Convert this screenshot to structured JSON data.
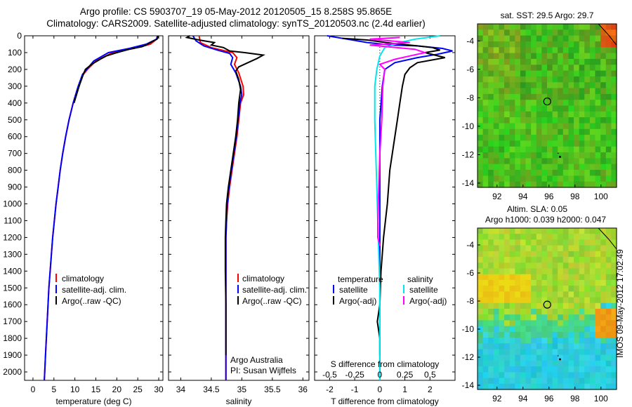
{
  "header": {
    "line1": "Argo profile: CS 5903707_19 05-May-2012 20120505_15 8.258S 95.865E",
    "line2": "Climatology: CARS2009. Satellite-adjusted climatology: synTS_20120503.nc (2.4d earlier)"
  },
  "colors": {
    "climatology": "#ff0000",
    "satellite": "#0000ff",
    "argo": "#000000",
    "t_satellite": "#0000ff",
    "s_satellite": "#00e5ee",
    "s_argo": "#ff00ff"
  },
  "chart_data": [
    {
      "id": "temperature",
      "type": "line",
      "xlabel": "temperature (deg C)",
      "ylabel": "",
      "xlim": [
        -2,
        31
      ],
      "ylim": [
        2050,
        0
      ],
      "xticks": [
        0,
        5,
        10,
        15,
        20,
        25,
        30
      ],
      "yticks": [
        0,
        100,
        200,
        300,
        400,
        500,
        600,
        700,
        800,
        900,
        1000,
        1100,
        1200,
        1300,
        1400,
        1500,
        1600,
        1700,
        1800,
        1900,
        2000
      ],
      "legend": [
        "climatology",
        "satellite-adj. clim.",
        "Argo(..raw -QC)"
      ],
      "series": [
        {
          "name": "climatology",
          "color": "#ff0000",
          "points": [
            [
              29.7,
              0
            ],
            [
              29.5,
              20
            ],
            [
              28,
              50
            ],
            [
              24,
              75
            ],
            [
              19,
              100
            ],
            [
              15,
              150
            ],
            [
              13,
              200
            ],
            [
              12,
              230
            ],
            [
              10.8,
              300
            ],
            [
              9.6,
              400
            ],
            [
              8.6,
              500
            ],
            [
              7.8,
              600
            ],
            [
              7.1,
              700
            ],
            [
              6.5,
              800
            ],
            [
              6,
              900
            ],
            [
              5.5,
              1000
            ],
            [
              5.1,
              1100
            ],
            [
              4.7,
              1200
            ],
            [
              4.4,
              1300
            ],
            [
              4.1,
              1400
            ],
            [
              3.8,
              1500
            ],
            [
              3.6,
              1600
            ],
            [
              3.4,
              1700
            ],
            [
              3.2,
              1800
            ],
            [
              3,
              1900
            ],
            [
              2.8,
              2000
            ],
            [
              2.7,
              2050
            ]
          ]
        },
        {
          "name": "satellite-adj. clim.",
          "color": "#0000ff",
          "points": [
            [
              29.7,
              0
            ],
            [
              29.5,
              20
            ],
            [
              27,
              50
            ],
            [
              23,
              75
            ],
            [
              18,
              100
            ],
            [
              14.5,
              150
            ],
            [
              12.8,
              200
            ],
            [
              11.8,
              230
            ],
            [
              10.8,
              300
            ],
            [
              9.6,
              400
            ],
            [
              8.6,
              500
            ],
            [
              7.8,
              600
            ],
            [
              7.1,
              700
            ],
            [
              6.5,
              800
            ],
            [
              6,
              900
            ],
            [
              5.5,
              1000
            ],
            [
              5.1,
              1100
            ],
            [
              4.7,
              1200
            ],
            [
              4.4,
              1300
            ],
            [
              4.1,
              1400
            ],
            [
              3.8,
              1500
            ],
            [
              3.6,
              1600
            ],
            [
              3.4,
              1700
            ],
            [
              3.2,
              1800
            ],
            [
              3,
              1900
            ],
            [
              2.8,
              2000
            ],
            [
              2.7,
              2050
            ]
          ]
        },
        {
          "name": "Argo(..raw -QC)",
          "color": "#000000",
          "points": [
            [
              29.9,
              0
            ],
            [
              29.8,
              10
            ],
            [
              29.6,
              20
            ],
            [
              28,
              40
            ],
            [
              27,
              55
            ],
            [
              26,
              65
            ],
            [
              23,
              80
            ],
            [
              20,
              100
            ],
            [
              17.5,
              120
            ],
            [
              16,
              140
            ],
            [
              14,
              170
            ],
            [
              12.5,
              200
            ],
            [
              12,
              230
            ],
            [
              11,
              300
            ],
            [
              9.8,
              400
            ]
          ]
        }
      ]
    },
    {
      "id": "salinity",
      "type": "line",
      "xlabel": "salinity",
      "ylabel": "",
      "xlim": [
        33.8,
        36.1
      ],
      "ylim": [
        2050,
        0
      ],
      "xticks": [
        34,
        34.5,
        35,
        35.5,
        36
      ],
      "legend": [
        "climatology",
        "satellite-adj. clim.",
        "Argo(..raw -QC)"
      ],
      "annotation": [
        "Argo Australia",
        "PI: Susan Wijffels"
      ],
      "series": [
        {
          "name": "climatology",
          "color": "#ff0000",
          "points": [
            [
              34.3,
              0
            ],
            [
              34.32,
              40
            ],
            [
              34.5,
              70
            ],
            [
              34.85,
              100
            ],
            [
              34.92,
              130
            ],
            [
              34.88,
              170
            ],
            [
              34.95,
              220
            ],
            [
              35.02,
              300
            ],
            [
              35.03,
              350
            ],
            [
              34.98,
              400
            ],
            [
              34.95,
              500
            ],
            [
              34.92,
              600
            ],
            [
              34.88,
              700
            ],
            [
              34.84,
              800
            ],
            [
              34.8,
              900
            ],
            [
              34.77,
              1000
            ],
            [
              34.75,
              1100
            ],
            [
              34.74,
              1200
            ],
            [
              34.74,
              1400
            ],
            [
              34.74,
              1600
            ],
            [
              34.74,
              1800
            ],
            [
              34.74,
              2000
            ],
            [
              34.74,
              2050
            ]
          ]
        },
        {
          "name": "satellite-adj. clim.",
          "color": "#0000ff",
          "points": [
            [
              34.2,
              0
            ],
            [
              34.25,
              30
            ],
            [
              34.38,
              60
            ],
            [
              34.6,
              85
            ],
            [
              34.8,
              105
            ],
            [
              34.85,
              130
            ],
            [
              34.82,
              170
            ],
            [
              34.9,
              220
            ],
            [
              34.98,
              300
            ],
            [
              35,
              350
            ],
            [
              34.97,
              400
            ],
            [
              34.94,
              500
            ],
            [
              34.91,
              600
            ],
            [
              34.87,
              700
            ],
            [
              34.83,
              800
            ],
            [
              34.79,
              900
            ],
            [
              34.76,
              1000
            ],
            [
              34.75,
              1100
            ],
            [
              34.74,
              1200
            ],
            [
              34.74,
              1400
            ],
            [
              34.74,
              1600
            ],
            [
              34.74,
              1800
            ],
            [
              34.74,
              2000
            ],
            [
              34.74,
              2050
            ]
          ]
        },
        {
          "name": "Argo(..raw -QC)",
          "color": "#000000",
          "points": [
            [
              34.15,
              0
            ],
            [
              34.1,
              10
            ],
            [
              34.3,
              25
            ],
            [
              34.55,
              40
            ],
            [
              34.5,
              55
            ],
            [
              34.7,
              70
            ],
            [
              34.8,
              90
            ],
            [
              35.05,
              100
            ],
            [
              35.35,
              115
            ],
            [
              35.25,
              135
            ],
            [
              35.1,
              160
            ],
            [
              34.95,
              185
            ],
            [
              34.9,
              210
            ],
            [
              34.95,
              260
            ],
            [
              34.98,
              320
            ],
            [
              34.95,
              400
            ],
            [
              34.93,
              500
            ],
            [
              34.9,
              600
            ],
            [
              34.86,
              700
            ],
            [
              34.82,
              800
            ],
            [
              34.78,
              900
            ],
            [
              34.75,
              1000
            ],
            [
              34.74,
              1100
            ],
            [
              34.73,
              1200
            ],
            [
              34.73,
              1400
            ],
            [
              34.74,
              1600
            ],
            [
              34.74,
              1800
            ],
            [
              34.74,
              1900
            ]
          ]
        }
      ]
    },
    {
      "id": "differences",
      "type": "line",
      "xlabel": "T difference from climatology",
      "x2label": "S difference from climatology",
      "ylabel": "",
      "xlim": [
        -2.6,
        3
      ],
      "ylim": [
        2050,
        0
      ],
      "xticks": [
        "-2",
        "-1",
        "0",
        "1",
        "2"
      ],
      "x2ticks": [
        "-0.5",
        "-0.25",
        "0",
        "0.25",
        "0.5"
      ],
      "legend": {
        "temperature": [
          "satellite",
          "Argo(-adj)"
        ],
        "salinity": [
          "satellite",
          "Argo(-adj)"
        ]
      },
      "legend_headers": [
        "temperature",
        "salinity"
      ],
      "series": [
        {
          "name": "satellite",
          "group": "temperature",
          "color": "#0000ff",
          "points": [
            [
              -2.1,
              0
            ],
            [
              -1.3,
              20
            ],
            [
              -0.5,
              40
            ],
            [
              0.5,
              55
            ],
            [
              1.5,
              60
            ],
            [
              2.5,
              75
            ],
            [
              2.9,
              90
            ],
            [
              2.3,
              110
            ],
            [
              1.5,
              130
            ],
            [
              0.6,
              160
            ],
            [
              0.2,
              200
            ],
            [
              0.1,
              300
            ],
            [
              0,
              500
            ],
            [
              0,
              1000
            ],
            [
              0,
              2050
            ]
          ]
        },
        {
          "name": "Argo(-adj)",
          "group": "temperature",
          "color": "#000000",
          "points": [
            [
              -1.5,
              15
            ],
            [
              -0.5,
              25
            ],
            [
              0.5,
              45
            ],
            [
              1.5,
              60
            ],
            [
              2.1,
              70
            ],
            [
              2.4,
              85
            ],
            [
              1.8,
              100
            ],
            [
              2.6,
              130
            ],
            [
              1.5,
              160
            ],
            [
              1.2,
              190
            ],
            [
              1,
              230
            ],
            [
              0.9,
              300
            ],
            [
              0.8,
              400
            ],
            [
              0.7,
              500
            ],
            [
              0.6,
              600
            ],
            [
              0.5,
              700
            ],
            [
              0.4,
              800
            ],
            [
              0.3,
              1000
            ],
            [
              0.15,
              1200
            ],
            [
              0.05,
              1400
            ],
            [
              0,
              1600
            ],
            [
              -0.1,
              1700
            ],
            [
              0,
              1800
            ],
            [
              0,
              1900
            ]
          ]
        },
        {
          "name": "satellite",
          "group": "salinity",
          "color": "#00e5ee",
          "points": [
            [
              0.6,
              0
            ],
            [
              0.35,
              20
            ],
            [
              0.2,
              40
            ],
            [
              0.05,
              70
            ],
            [
              0,
              120
            ],
            [
              -0.03,
              200
            ],
            [
              -0.05,
              300
            ],
            [
              -0.05,
              500
            ],
            [
              -0.04,
              700
            ],
            [
              -0.03,
              900
            ],
            [
              -0.02,
              1100
            ],
            [
              -0.01,
              1300
            ],
            [
              0,
              1500
            ],
            [
              0,
              2050
            ]
          ]
        },
        {
          "name": "Argo(-adj)",
          "group": "salinity",
          "color": "#ff00ff",
          "points": [
            [
              0.2,
              10
            ],
            [
              -0.1,
              20
            ],
            [
              0.3,
              40
            ],
            [
              -0.1,
              55
            ],
            [
              0.35,
              80
            ],
            [
              0.45,
              100
            ],
            [
              0.3,
              120
            ],
            [
              0.15,
              140
            ],
            [
              0,
              170
            ],
            [
              0.05,
              200
            ],
            [
              0.03,
              300
            ],
            [
              0.02,
              500
            ],
            [
              0,
              700
            ],
            [
              -0.01,
              900
            ],
            [
              -0.02,
              1100
            ],
            [
              -0.02,
              1200
            ],
            [
              0,
              1250
            ]
          ]
        }
      ]
    },
    {
      "id": "sst_map",
      "type": "heatmap",
      "title": "sat. SST: 29.5 Argo: 29.7",
      "xlim": [
        90.5,
        101.2
      ],
      "ylim": [
        -14.3,
        -2.8
      ],
      "xticks": [
        92,
        94,
        96,
        98,
        100
      ],
      "yticks": [
        -4,
        -6,
        -8,
        -10,
        -12,
        -14
      ],
      "marker": {
        "lon": 95.865,
        "lat": -8.258
      }
    },
    {
      "id": "sla_map",
      "type": "heatmap",
      "title": [
        "Altim. SLA: 0.05",
        "Argo h1000: 0.039 h2000: 0.047"
      ],
      "xlim": [
        90.5,
        101.2
      ],
      "ylim": [
        -14.3,
        -2.8
      ],
      "xticks": [
        92,
        94,
        96,
        98,
        100
      ],
      "yticks": [
        -4,
        -6,
        -8,
        -10,
        -12,
        -14
      ],
      "marker": {
        "lon": 95.865,
        "lat": -8.258
      }
    }
  ],
  "footer": {
    "stamp": "IMOS 09-May-2012 17:02:49"
  }
}
